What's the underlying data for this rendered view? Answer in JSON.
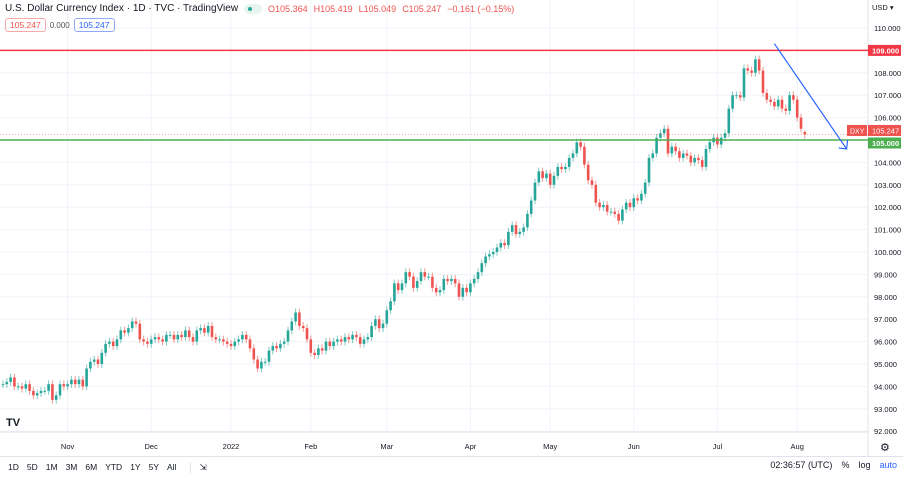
{
  "header": {
    "title": "U.S. Dollar Currency Index · 1D · TVC · TradingView",
    "open": "O105.364",
    "high": "H105.419",
    "low": "L105.049",
    "close": "C105.247",
    "change": "−0.161 (−0.15%)",
    "bid": "105.247",
    "spread": "0.000",
    "ask": "105.247"
  },
  "axis": {
    "currency": "USD ▾",
    "symbol": "DXY",
    "last_price_label": "105.247",
    "resistance_label": "109.000",
    "support_label": "105.000"
  },
  "toolbar": {
    "ranges": [
      "1D",
      "5D",
      "1M",
      "3M",
      "6M",
      "YTD",
      "1Y",
      "5Y",
      "All"
    ],
    "time": "02:36:57 (UTC)",
    "percent": "%",
    "log": "log",
    "auto": "auto"
  },
  "colors": {
    "up": "#26a69a",
    "down": "#ef5350",
    "resistance": "#f23645",
    "support": "#4caf50",
    "trend_arrow": "#2962ff"
  },
  "chart_data": {
    "type": "candlestick",
    "title": "U.S. Dollar Currency Index",
    "ylim": [
      91.6,
      111
    ],
    "y_ticks": [
      92,
      93,
      94,
      95,
      96,
      97,
      98,
      99,
      100,
      101,
      102,
      103,
      104,
      105,
      106,
      107,
      108,
      109,
      110
    ],
    "x_ticks": [
      {
        "label": "Nov",
        "index": 17
      },
      {
        "label": "Dec",
        "index": 39
      },
      {
        "label": "2022",
        "index": 60
      },
      {
        "label": "Feb",
        "index": 81
      },
      {
        "label": "Mar",
        "index": 101
      },
      {
        "label": "Apr",
        "index": 123
      },
      {
        "label": "May",
        "index": 144
      },
      {
        "label": "Jun",
        "index": 166
      },
      {
        "label": "Jul",
        "index": 188
      },
      {
        "label": "Aug",
        "index": 209
      }
    ],
    "last_candle": {
      "open": 105.364,
      "high": 105.419,
      "low": 105.049,
      "close": 105.247
    },
    "horizontal_lines": [
      {
        "value": 109.0,
        "color": "#f23645"
      },
      {
        "value": 105.0,
        "color": "#4caf50"
      }
    ],
    "trend_arrow": {
      "from": {
        "index": 203,
        "value": 109.3
      },
      "to": {
        "index": 222,
        "value": 104.6
      }
    },
    "closes": [
      94.1,
      94.2,
      94.4,
      94.0,
      94.0,
      93.9,
      94.1,
      93.8,
      93.6,
      93.7,
      93.8,
      93.8,
      94.1,
      93.4,
      93.6,
      94.1,
      94.0,
      94.1,
      94.3,
      94.1,
      94.3,
      94.0,
      94.8,
      95.1,
      95.2,
      95.0,
      95.5,
      95.9,
      96.0,
      95.8,
      96.1,
      96.5,
      96.4,
      96.6,
      96.9,
      96.8,
      96.1,
      96.0,
      95.9,
      96.1,
      96.2,
      96.1,
      96.0,
      96.3,
      96.3,
      96.1,
      96.3,
      96.2,
      96.5,
      96.2,
      96.0,
      96.5,
      96.6,
      96.4,
      96.7,
      96.2,
      96.1,
      96.1,
      96.0,
      95.9,
      95.8,
      96.0,
      96.1,
      96.3,
      96.1,
      95.7,
      95.2,
      94.8,
      95.1,
      95.1,
      95.6,
      95.8,
      95.7,
      95.9,
      96.0,
      96.5,
      96.9,
      97.3,
      96.7,
      96.6,
      96.1,
      95.5,
      95.4,
      95.7,
      95.6,
      96.0,
      95.8,
      96.0,
      96.1,
      96.0,
      96.2,
      96.1,
      96.3,
      96.2,
      95.9,
      96.1,
      96.2,
      96.7,
      97.0,
      96.6,
      96.8,
      97.4,
      97.8,
      98.6,
      98.3,
      98.6,
      99.1,
      98.9,
      98.4,
      98.7,
      99.1,
      98.9,
      98.9,
      98.4,
      98.2,
      98.3,
      98.8,
      98.7,
      98.8,
      98.6,
      98.0,
      98.4,
      98.2,
      98.6,
      98.8,
      99.1,
      99.5,
      99.8,
      99.9,
      100.0,
      100.2,
      100.4,
      100.3,
      100.9,
      101.2,
      100.8,
      100.9,
      101.1,
      101.7,
      102.3,
      103.1,
      103.6,
      103.3,
      103.5,
      103.0,
      103.4,
      103.8,
      103.7,
      103.8,
      104.2,
      104.4,
      104.9,
      104.7,
      103.9,
      103.2,
      103.0,
      102.2,
      102.0,
      102.1,
      101.8,
      101.8,
      101.7,
      101.4,
      101.9,
      102.2,
      102.0,
      102.4,
      102.3,
      102.6,
      103.1,
      104.2,
      104.4,
      105.1,
      105.3,
      105.5,
      104.4,
      104.7,
      104.5,
      104.2,
      104.4,
      104.3,
      104.0,
      104.2,
      104.1,
      103.8,
      104.6,
      104.9,
      105.1,
      104.8,
      105.1,
      105.3,
      106.4,
      107.0,
      107.0,
      106.9,
      108.2,
      108.1,
      108.0,
      108.6,
      108.1,
      107.1,
      106.8,
      106.7,
      106.5,
      106.8,
      106.4,
      106.3,
      107.0,
      106.8,
      106.0,
      105.5,
      105.247
    ]
  }
}
